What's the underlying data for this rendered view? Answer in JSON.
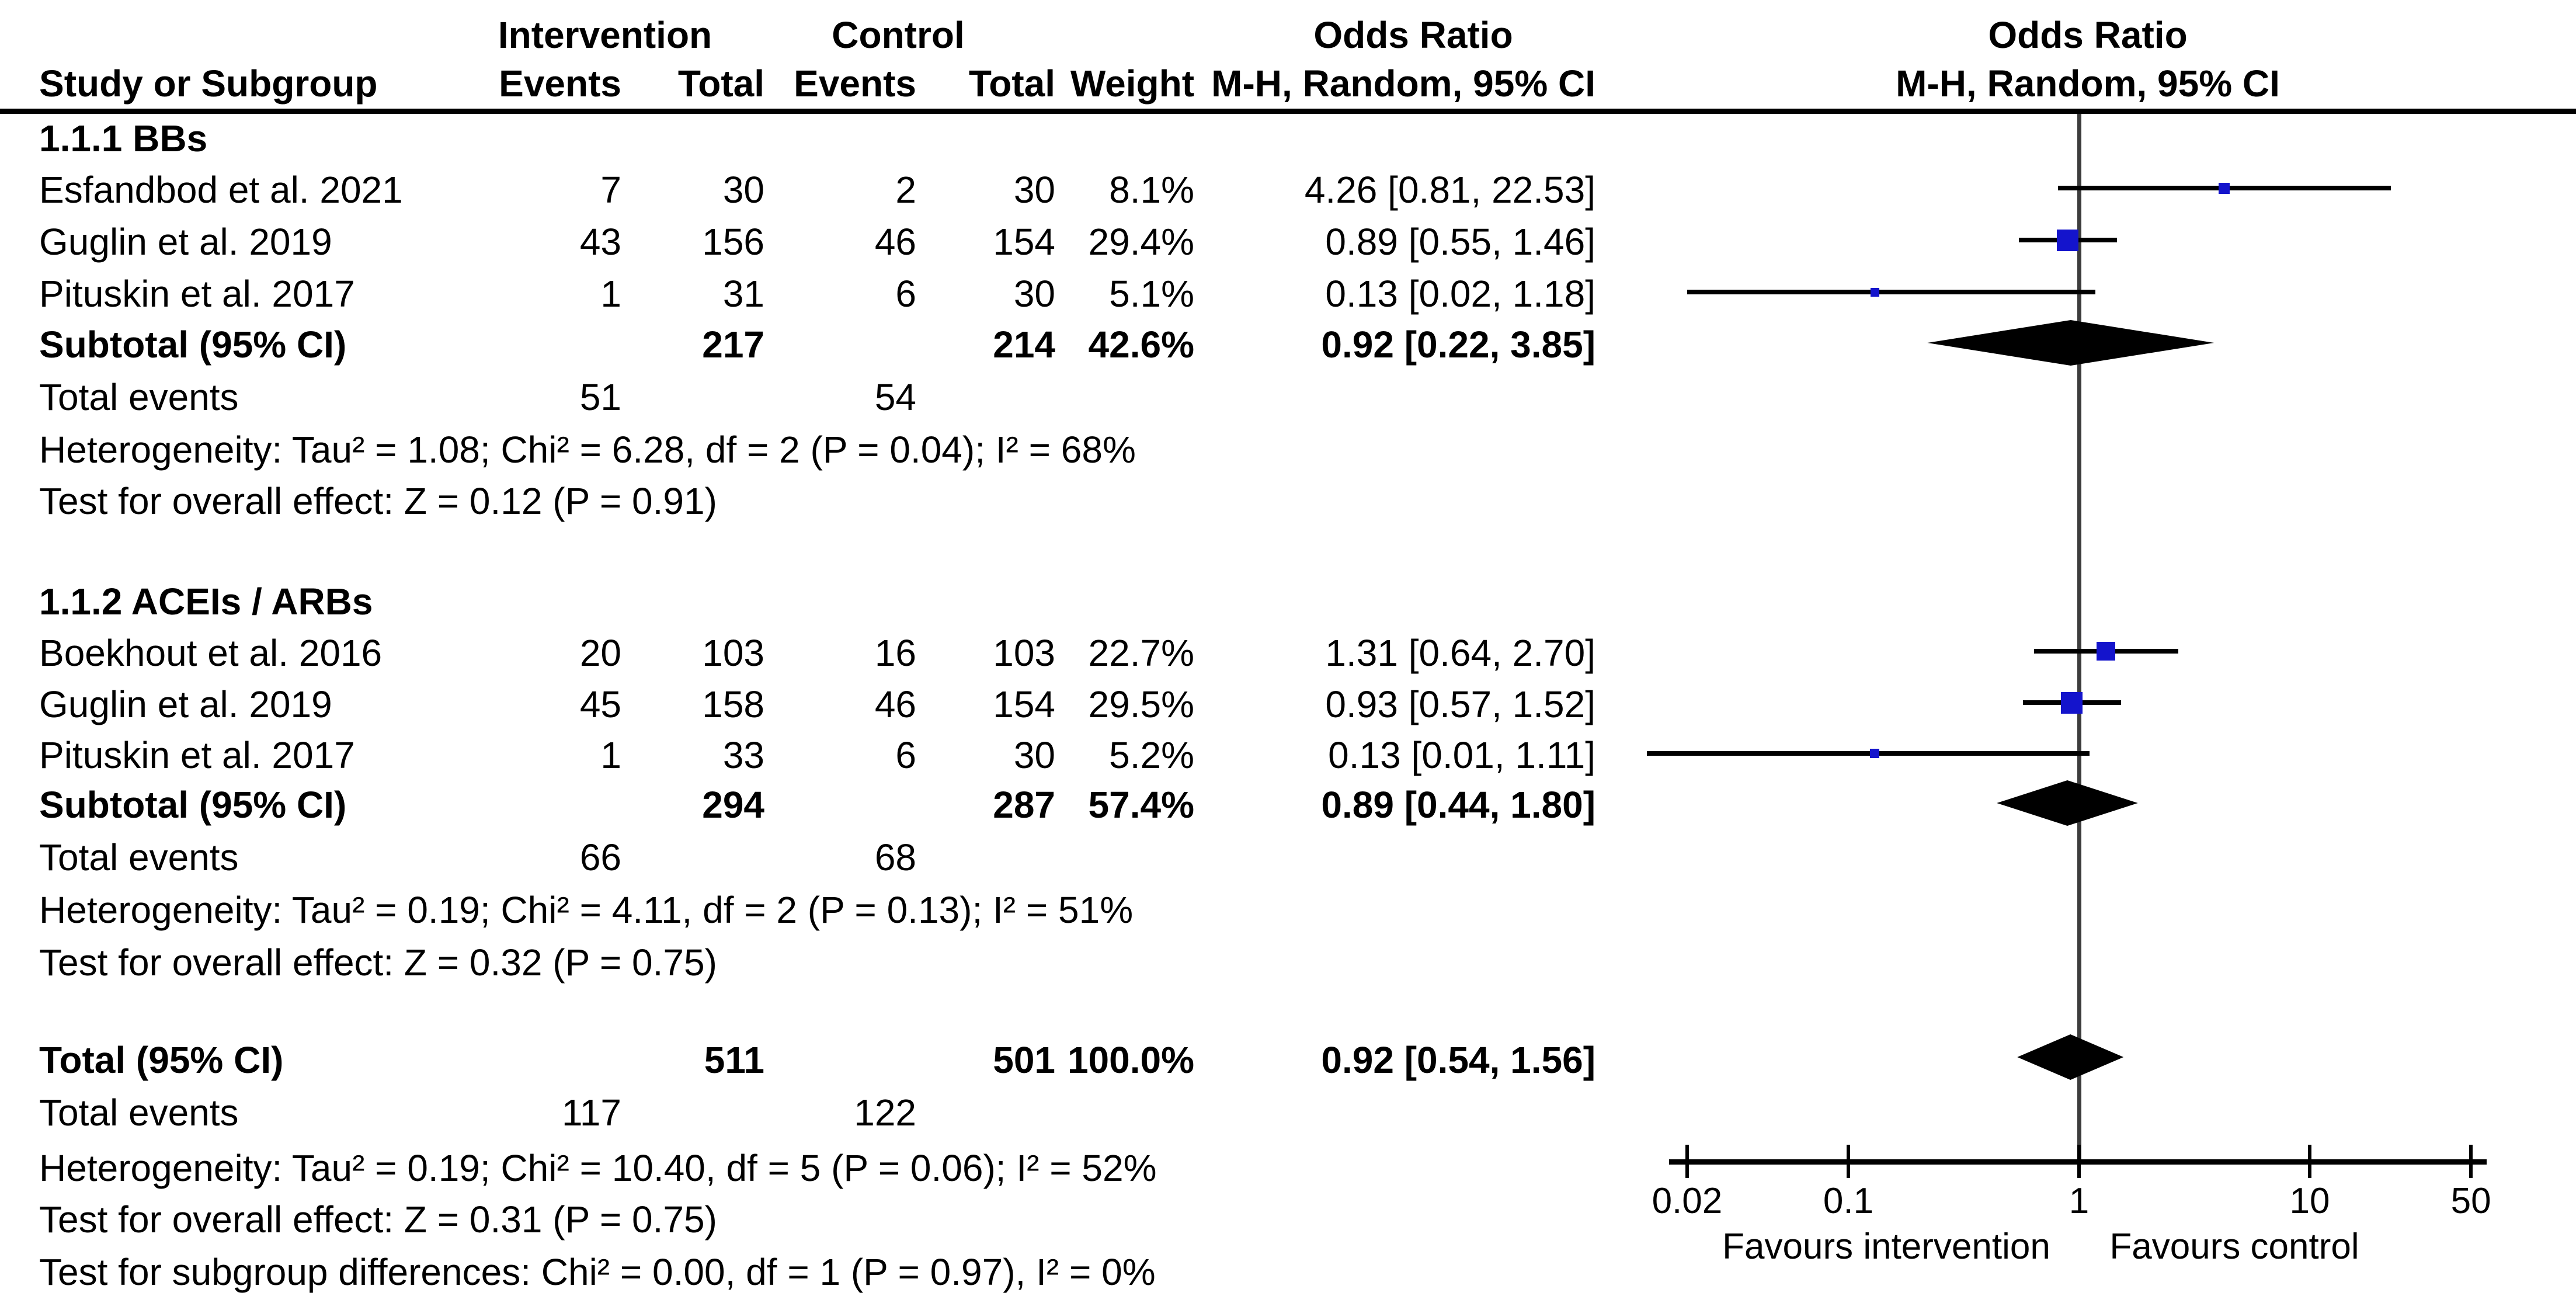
{
  "header": {
    "group_intervention": "Intervention",
    "group_control": "Control",
    "odds_ratio_text_col": "Odds Ratio",
    "odds_ratio_plot_col": "Odds Ratio",
    "or_method_text_col": "M-H, Random, 95% CI",
    "or_method_plot_col": "M-H, Random, 95% CI",
    "col_study": "Study or Subgroup",
    "col_events_intervention": "Events",
    "col_total_intervention": "Total",
    "col_events_control": "Events",
    "col_total_control": "Total",
    "col_weight": "Weight"
  },
  "chart_data": {
    "type": "forest",
    "x_scale": "log",
    "axis_ticks": [
      0.02,
      0.1,
      1,
      10,
      50
    ],
    "axis_tick_labels": [
      "0.02",
      "0.1",
      "1",
      "10",
      "50"
    ],
    "null_line_value": 1,
    "favours_left": "Favours intervention",
    "favours_right": "Favours control",
    "colors": {
      "square": "#1414cc",
      "ci_line": "#000000",
      "null_line": "#3d3d3d",
      "diamond": "#000000"
    },
    "sections": [
      {
        "title": "1.1.1 BBs",
        "studies": [
          {
            "name": "Esfandbod et al. 2021",
            "int_events": "7",
            "int_total": "30",
            "ctl_events": "2",
            "ctl_total": "30",
            "weight": "8.1%",
            "or_text": "4.26 [0.81, 22.53]",
            "or": 4.26,
            "ci_low": 0.81,
            "ci_high": 22.53
          },
          {
            "name": "Guglin et al. 2019",
            "int_events": "43",
            "int_total": "156",
            "ctl_events": "46",
            "ctl_total": "154",
            "weight": "29.4%",
            "or_text": "0.89 [0.55, 1.46]",
            "or": 0.89,
            "ci_low": 0.55,
            "ci_high": 1.46
          },
          {
            "name": "Pituskin et al. 2017",
            "int_events": "1",
            "int_total": "31",
            "ctl_events": "6",
            "ctl_total": "30",
            "weight": "5.1%",
            "or_text": "0.13 [0.02, 1.18]",
            "or": 0.13,
            "ci_low": 0.02,
            "ci_high": 1.18
          }
        ],
        "subtotal": {
          "name": "Subtotal (95% CI)",
          "int_total": "217",
          "ctl_total": "214",
          "weight": "42.6%",
          "or_text": "0.92 [0.22, 3.85]",
          "or": 0.92,
          "ci_low": 0.22,
          "ci_high": 3.85
        },
        "total_events": {
          "label": "Total events",
          "int": "51",
          "ctl": "54"
        },
        "heterogeneity": "Heterogeneity: Tau² = 1.08; Chi² = 6.28, df = 2 (P = 0.04); I² = 68%",
        "overall_effect": "Test for overall effect: Z = 0.12 (P = 0.91)"
      },
      {
        "title": "1.1.2 ACEIs / ARBs",
        "studies": [
          {
            "name": "Boekhout et al. 2016",
            "int_events": "20",
            "int_total": "103",
            "ctl_events": "16",
            "ctl_total": "103",
            "weight": "22.7%",
            "or_text": "1.31 [0.64, 2.70]",
            "or": 1.31,
            "ci_low": 0.64,
            "ci_high": 2.7
          },
          {
            "name": "Guglin et al. 2019",
            "int_events": "45",
            "int_total": "158",
            "ctl_events": "46",
            "ctl_total": "154",
            "weight": "29.5%",
            "or_text": "0.93 [0.57, 1.52]",
            "or": 0.93,
            "ci_low": 0.57,
            "ci_high": 1.52
          },
          {
            "name": "Pituskin et al. 2017",
            "int_events": "1",
            "int_total": "33",
            "ctl_events": "6",
            "ctl_total": "30",
            "weight": "5.2%",
            "or_text": "0.13 [0.01, 1.11]",
            "or": 0.13,
            "ci_low": 0.01,
            "ci_high": 1.11
          }
        ],
        "subtotal": {
          "name": "Subtotal (95% CI)",
          "int_total": "294",
          "ctl_total": "287",
          "weight": "57.4%",
          "or_text": "0.89 [0.44, 1.80]",
          "or": 0.89,
          "ci_low": 0.44,
          "ci_high": 1.8
        },
        "total_events": {
          "label": "Total events",
          "int": "66",
          "ctl": "68"
        },
        "heterogeneity": "Heterogeneity: Tau² = 0.19; Chi² = 4.11, df = 2 (P = 0.13); I² = 51%",
        "overall_effect": "Test for overall effect: Z = 0.32 (P = 0.75)"
      }
    ],
    "total": {
      "name": "Total (95% CI)",
      "int_total": "511",
      "ctl_total": "501",
      "weight": "100.0%",
      "or_text": "0.92 [0.54, 1.56]",
      "or": 0.92,
      "ci_low": 0.54,
      "ci_high": 1.56,
      "total_events": {
        "label": "Total events",
        "int": "117",
        "ctl": "122"
      },
      "heterogeneity": "Heterogeneity: Tau² = 0.19; Chi² = 10.40, df = 5 (P = 0.06); I² = 52%",
      "overall_effect": "Test for overall effect: Z = 0.31 (P = 0.75)",
      "subgroup_diff": "Test for subgroup differences: Chi² = 0.00, df = 1 (P = 0.97), I² = 0%"
    }
  }
}
